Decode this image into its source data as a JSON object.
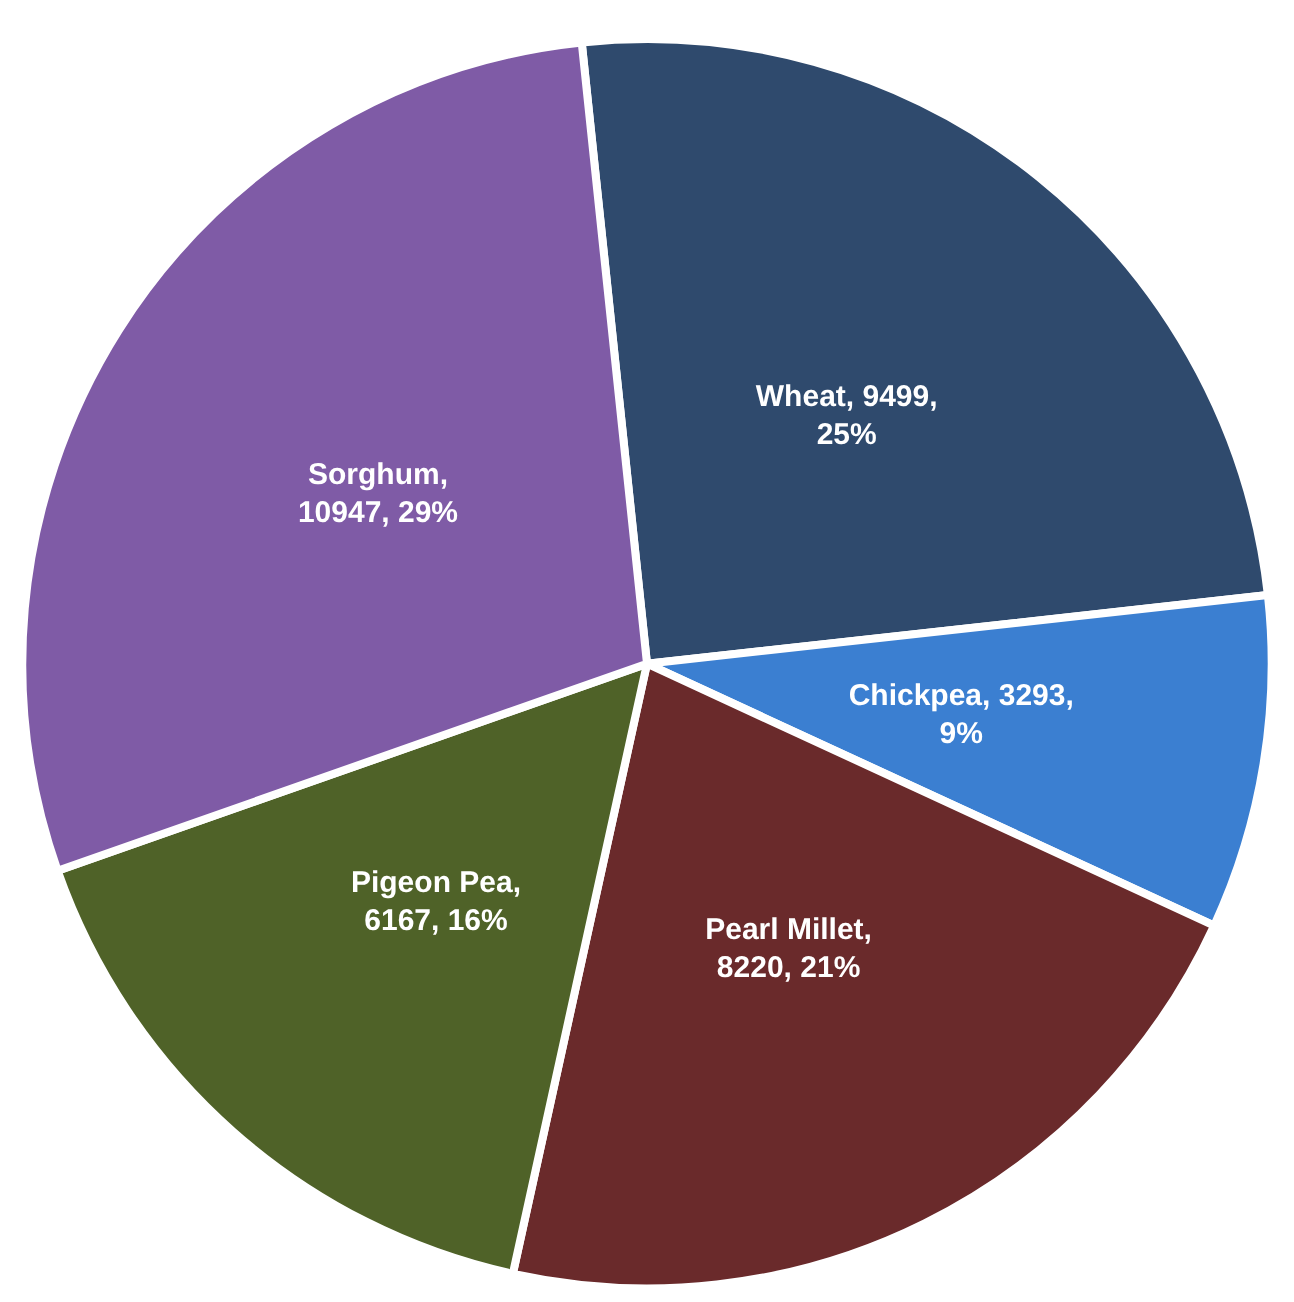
{
  "chart_data": {
    "type": "pie",
    "categories": [
      "Wheat",
      "Chickpea",
      "Pearl Millet",
      "Pigeon Pea",
      "Sorghum"
    ],
    "values": [
      9499,
      3293,
      8220,
      6167,
      10947
    ],
    "colors": [
      "#2f4a6d",
      "#3b7fd1",
      "#6a2a2b",
      "#4f6228",
      "#7f5ba6"
    ],
    "value_labels": [
      ", 9499,\n25%",
      ", 3293,\n9%",
      ",\n8220, 21%",
      ",\n6167, 16%",
      ",\n10947, 29%"
    ],
    "legend": false
  }
}
